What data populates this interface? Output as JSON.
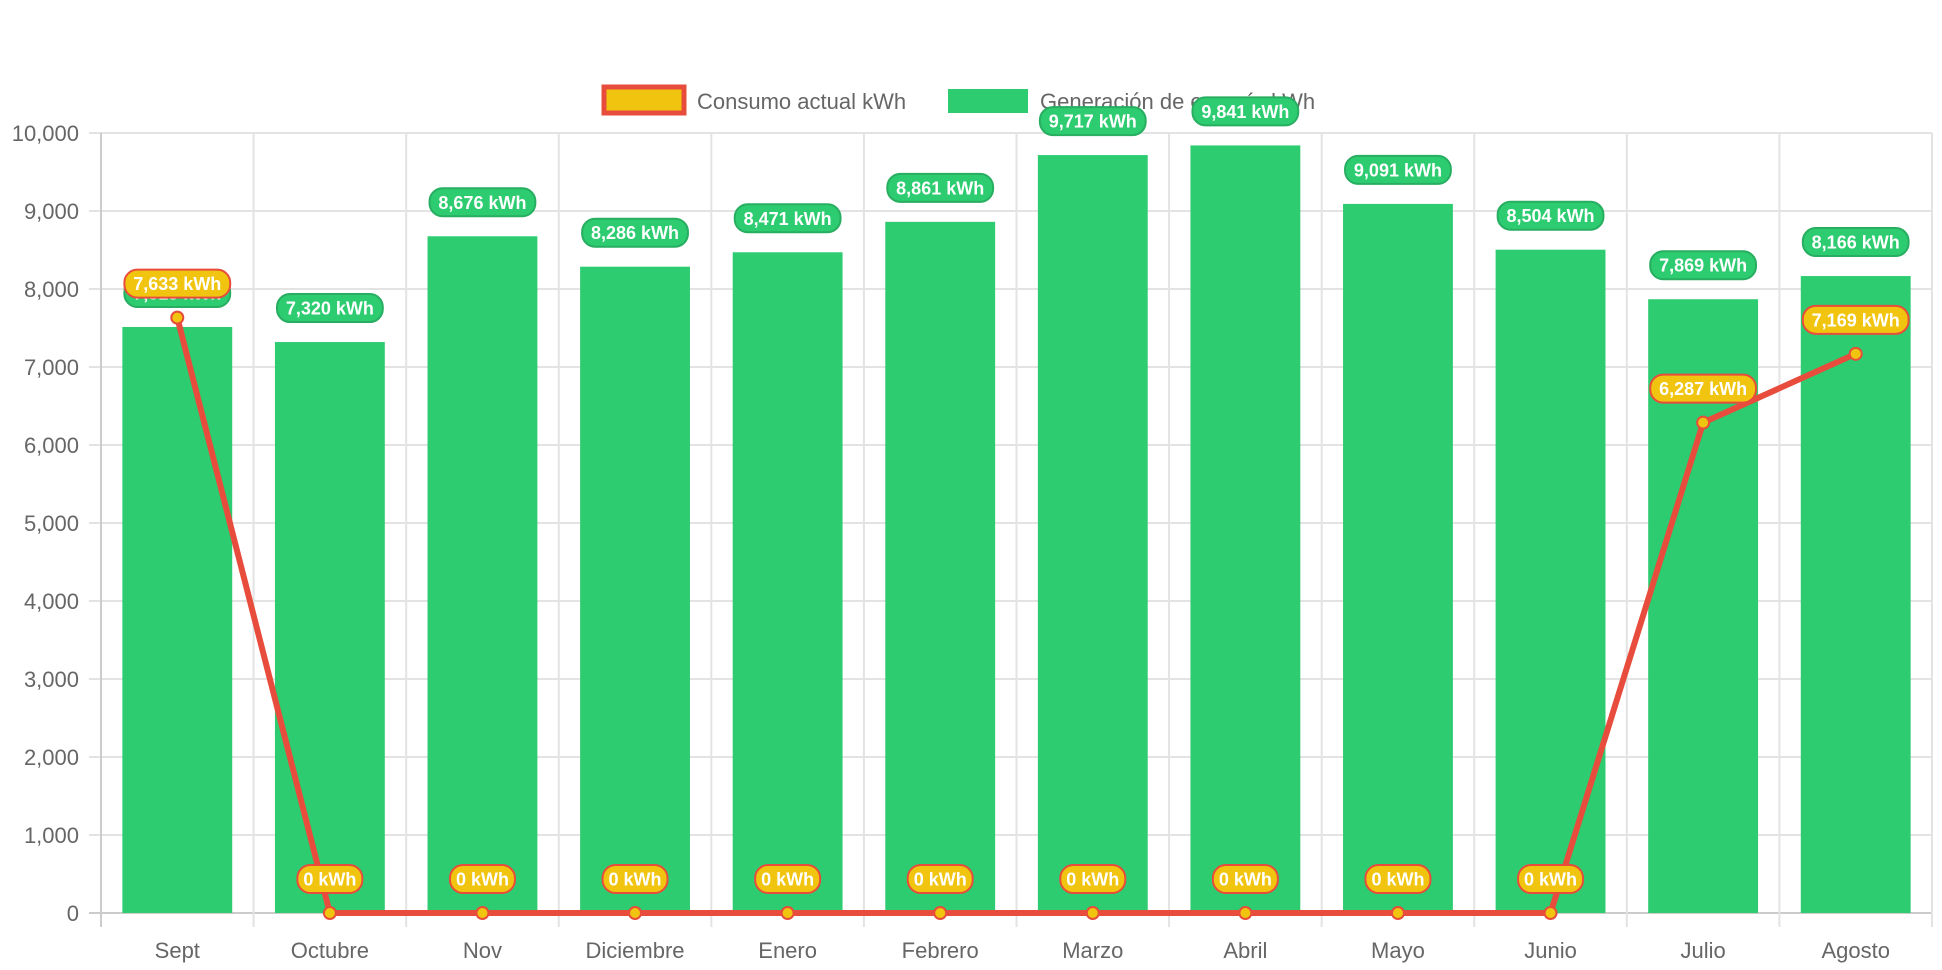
{
  "chart_data": {
    "type": "bar",
    "title": "",
    "xlabel": "",
    "ylabel": "",
    "ylim": [
      0,
      10000
    ],
    "y_ticks": [
      "0",
      "1,000",
      "2,000",
      "3,000",
      "4,000",
      "5,000",
      "6,000",
      "7,000",
      "8,000",
      "9,000",
      "10,000"
    ],
    "grid": true,
    "legend_position": "top-center",
    "categories": [
      "Sept",
      "Octubre",
      "Nov",
      "Diciembre",
      "Enero",
      "Febrero",
      "Marzo",
      "Abril",
      "Mayo",
      "Junio",
      "Julio",
      "Agosto"
    ],
    "unit_suffix": " kWh",
    "series": [
      {
        "name": "Consumo actual kWh",
        "type": "line",
        "color": "#E74C3C",
        "point_color": "#F1C40F",
        "values": [
          7633,
          0,
          0,
          0,
          0,
          0,
          0,
          0,
          0,
          0,
          6287,
          7169
        ]
      },
      {
        "name": "Generación de energía kWh",
        "type": "bar",
        "color": "#2ECC71",
        "label_border": "#27AE60",
        "values": [
          7513,
          7320,
          8676,
          8286,
          8471,
          8861,
          9717,
          9841,
          9091,
          8504,
          7869,
          8166
        ]
      }
    ]
  }
}
